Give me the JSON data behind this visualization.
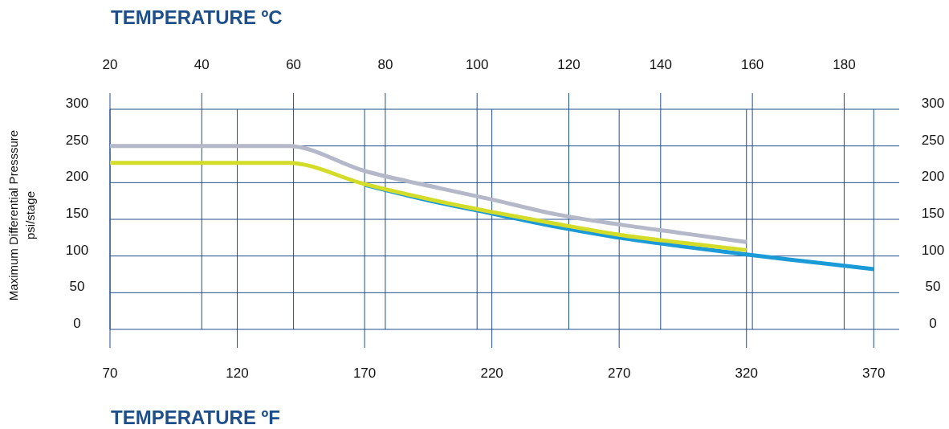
{
  "chart_data": {
    "type": "line",
    "xlabel": "TEMPERATURE ºF",
    "x2label": "TEMPERATURE ºC",
    "ylabel": "Maximum Differential Presssure\npsi/stage",
    "xlim": [
      70,
      380
    ],
    "xticks": [
      70,
      120,
      170,
      220,
      270,
      320,
      370
    ],
    "x2lim": [
      20,
      192
    ],
    "x2ticks": [
      20,
      40,
      60,
      80,
      100,
      120,
      140,
      160,
      180
    ],
    "ylim": [
      0,
      300
    ],
    "yticks": [
      0,
      50,
      100,
      150,
      200,
      250,
      300
    ],
    "y2lim": [
      0,
      300
    ],
    "y2ticks": [
      0,
      50,
      100,
      150,
      200,
      250,
      300
    ],
    "grid": true,
    "marker": "none",
    "line_style": "solid",
    "series": [
      {
        "color": "#1a9ad6",
        "x": [
          170,
          200,
          220,
          245,
          270,
          295,
          320,
          345,
          370
        ],
        "values": [
          197,
          172,
          158,
          140,
          125,
          113,
          102,
          92,
          82
        ]
      },
      {
        "color": "#d4dc2a",
        "x": [
          70,
          140,
          170,
          200,
          220,
          245,
          270,
          295,
          320
        ],
        "values": [
          227,
          227,
          198,
          174,
          160,
          144,
          129,
          118,
          108
        ]
      },
      {
        "color": "#b4b8c8",
        "x": [
          70,
          140,
          170,
          200,
          220,
          245,
          270,
          295,
          320
        ],
        "values": [
          250,
          250,
          216,
          192,
          177,
          157,
          143,
          131,
          119
        ]
      }
    ]
  }
}
